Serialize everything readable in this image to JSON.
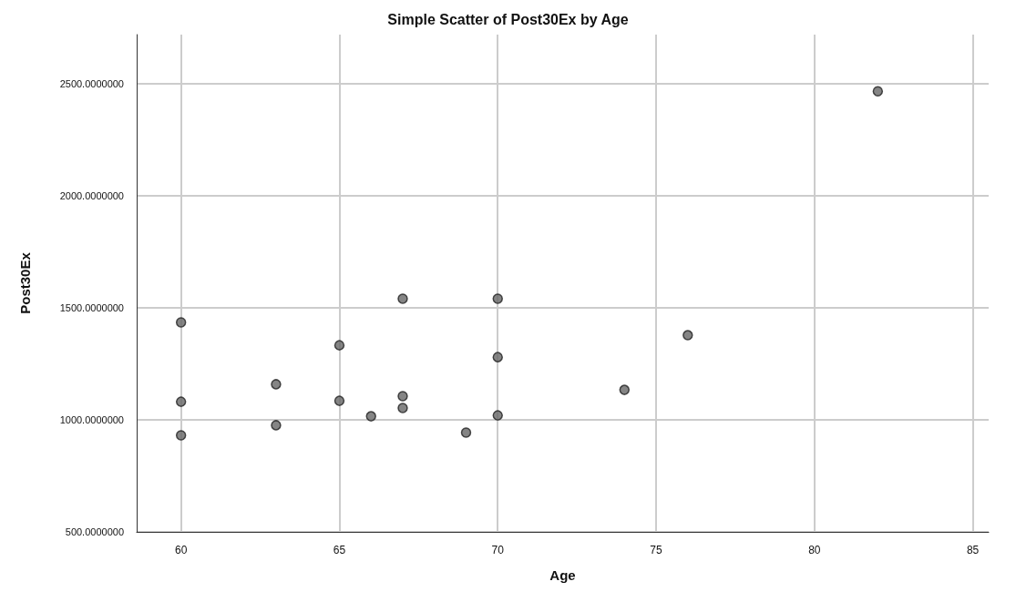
{
  "chart_data": {
    "type": "scatter",
    "title": "Simple Scatter of Post30Ex by Age",
    "xlabel": "Age",
    "ylabel": "Post30Ex",
    "x": [
      60,
      60,
      60,
      63,
      63,
      65,
      65,
      66,
      67,
      67,
      67,
      69,
      70,
      70,
      70,
      74,
      76,
      82
    ],
    "values": [
      1435,
      1081,
      931,
      1159,
      976,
      1333,
      1085,
      1016,
      1541,
      1106,
      1053,
      943,
      1541,
      1280,
      1020,
      1134,
      1378,
      2467
    ],
    "color": "#666666",
    "marker": "circle",
    "grid": true,
    "xlim": [
      58.6,
      85.5
    ],
    "xticks": [
      60,
      65,
      70,
      75,
      80,
      85
    ],
    "ylim": [
      500,
      2720
    ],
    "yticks": [
      {
        "value": 500,
        "label": "500.0000000"
      },
      {
        "value": 1000,
        "label": "1000.0000000"
      },
      {
        "value": 1500,
        "label": "1500.0000000"
      },
      {
        "value": 2000,
        "label": "2000.0000000"
      },
      {
        "value": 2500,
        "label": "2500.0000000"
      }
    ]
  }
}
